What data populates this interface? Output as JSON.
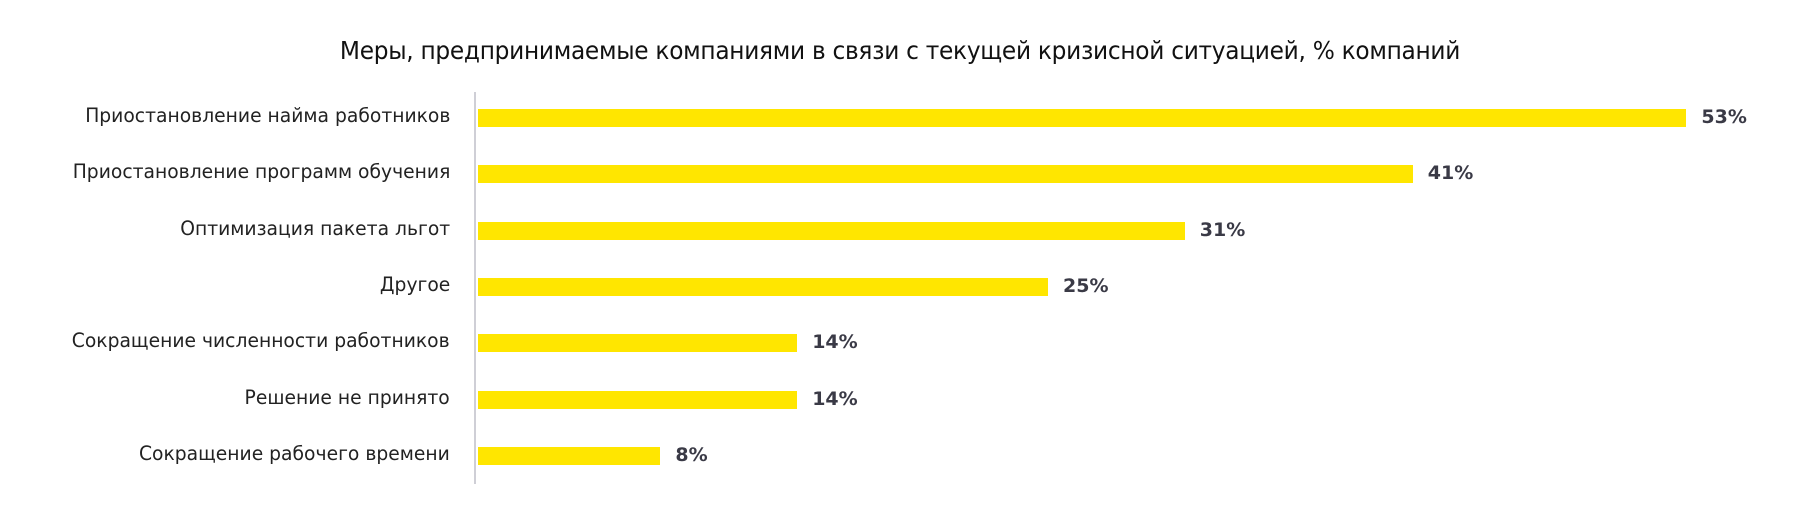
{
  "chart_data": {
    "type": "bar",
    "orientation": "horizontal",
    "title": "Меры, предпринимаемые компаниями в связи с текущей кризисной ситуацией, % компаний",
    "xlabel": "",
    "ylabel": "",
    "xlim": [
      0,
      53
    ],
    "grid": false,
    "legend": null,
    "unit": "%",
    "bar_color": "#ffe600",
    "label_color": "#3a3a46",
    "categories": [
      "Приостановление найма работников",
      "Приостановление программ обучения",
      "Оптимизация пакета льгот",
      "Другое",
      "Сокращение численности работников",
      "Решение не принято",
      "Сокращение рабочего времени"
    ],
    "values": [
      53,
      41,
      31,
      25,
      14,
      14,
      8
    ],
    "value_labels": [
      "53%",
      "41%",
      "31%",
      "25%",
      "14%",
      "14%",
      "8%"
    ]
  }
}
